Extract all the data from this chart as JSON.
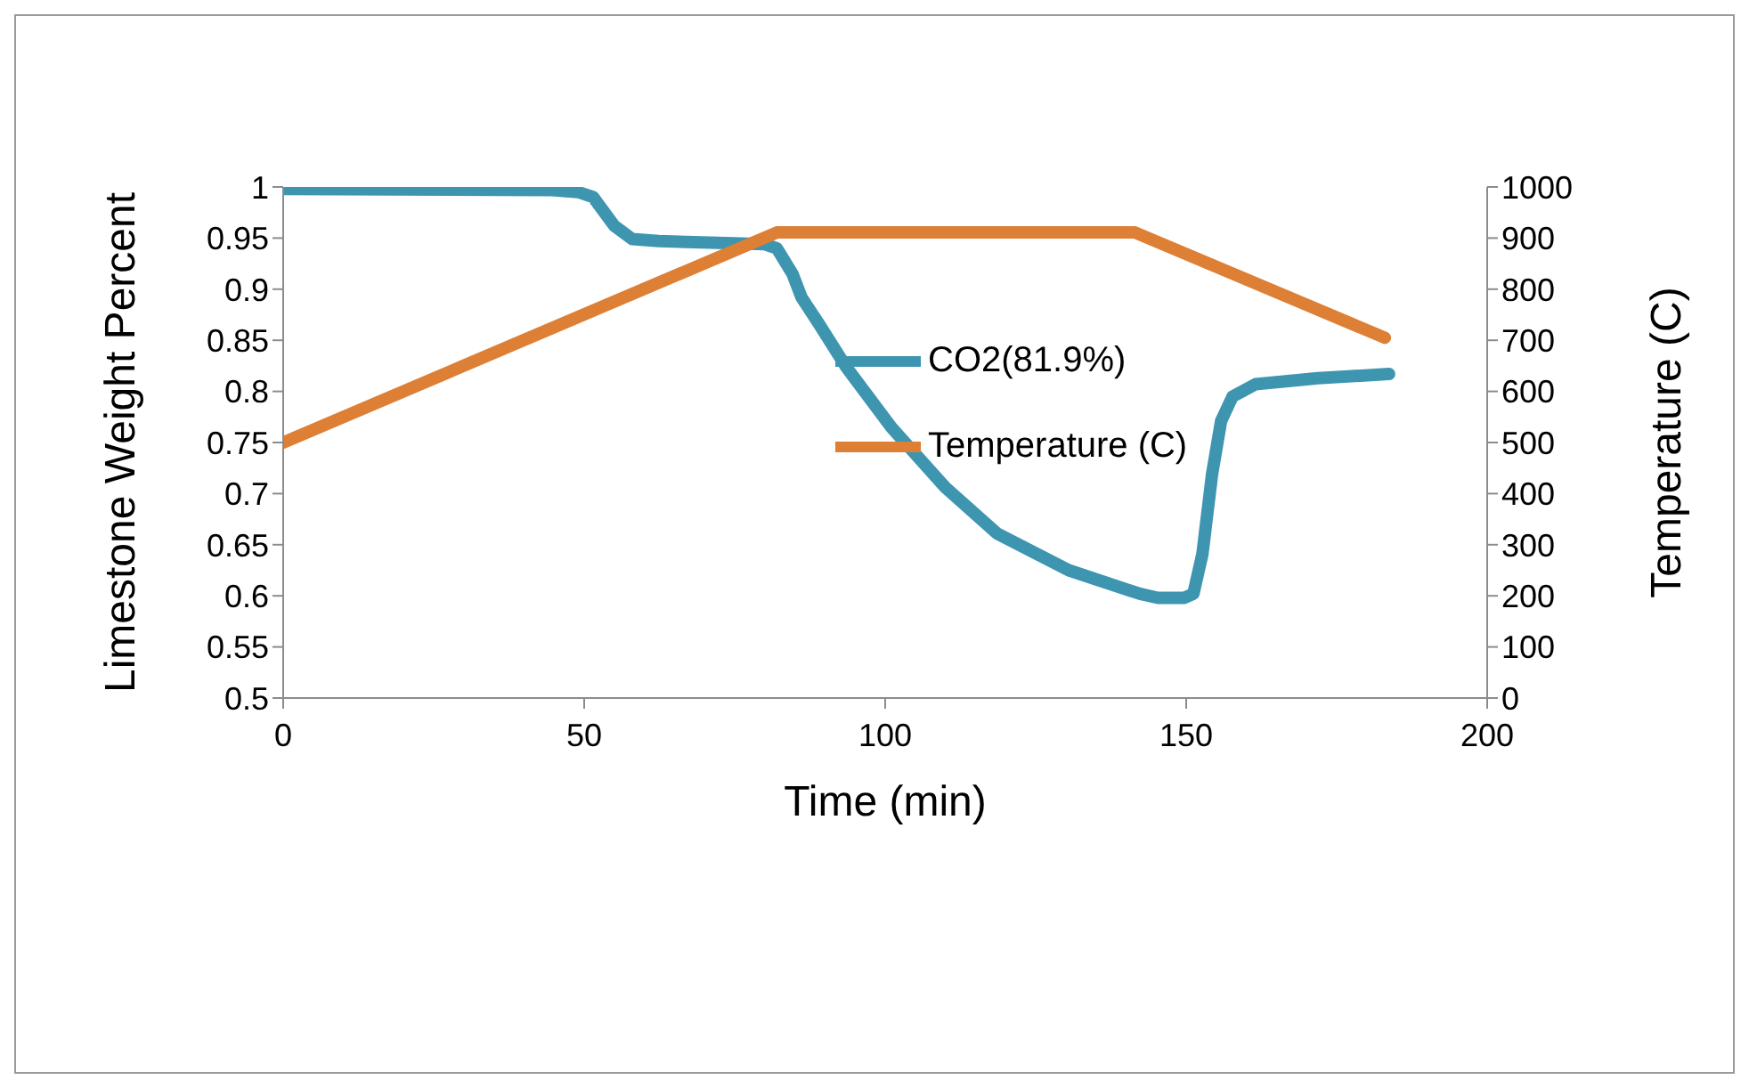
{
  "chart_data": {
    "type": "line",
    "xlabel": "Time (min)",
    "ylabel": "Limestone Weight Percent",
    "y2label": "Temperature (C)",
    "xlim": [
      0,
      200
    ],
    "xticks": [
      0,
      50,
      100,
      150,
      200
    ],
    "ylim": [
      0.5,
      1
    ],
    "yticks": [
      0.5,
      0.55,
      0.6,
      0.65,
      0.7,
      0.75,
      0.8,
      0.85,
      0.9,
      0.95,
      1
    ],
    "y2lim": [
      0,
      1000
    ],
    "y2ticks": [
      0,
      100,
      200,
      300,
      400,
      500,
      600,
      700,
      800,
      900,
      1000
    ],
    "grid": false,
    "legend": "top",
    "marker": "none",
    "line_style": "solid",
    "series": [
      {
        "name": "CO2(81.9%)",
        "color": "#3e95b0",
        "x": [
          0,
          44.7,
          49,
          51.5,
          55,
          58,
          62.4,
          80,
          82,
          84.6,
          86.1,
          89,
          93.5,
          101,
          110,
          118.6,
          130.5,
          142.3,
          145.3,
          149.7,
          151.2,
          152.7,
          154.3,
          155.8,
          157.7,
          161.5,
          171.9,
          183.7
        ],
        "values": [
          0.998,
          0.997,
          0.995,
          0.99,
          0.962,
          0.949,
          0.947,
          0.944,
          0.94,
          0.915,
          0.892,
          0.866,
          0.824,
          0.765,
          0.706,
          0.661,
          0.625,
          0.602,
          0.598,
          0.598,
          0.602,
          0.641,
          0.719,
          0.771,
          0.795,
          0.807,
          0.813,
          0.817
        ]
      },
      {
        "name": "Temperature (C)",
        "color": "#dd7f35",
        "axis": "y2",
        "x": [
          0,
          82,
          141.5,
          183
        ],
        "values": [
          500,
          911,
          911,
          705
        ]
      }
    ]
  }
}
